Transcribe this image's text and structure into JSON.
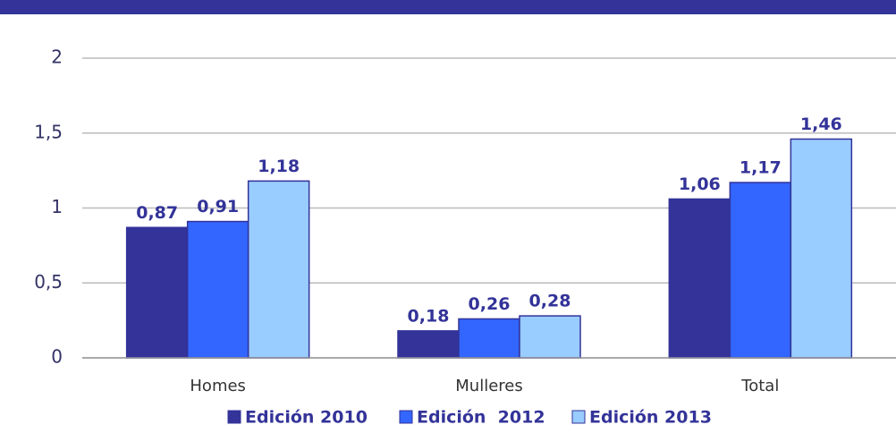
{
  "chart_data": {
    "type": "bar",
    "categories": [
      "Homes",
      "Mulleres",
      "Total"
    ],
    "series": [
      {
        "name": "Edición 2010",
        "color": "#333399",
        "values": [
          0.87,
          0.18,
          1.06
        ],
        "value_labels": [
          "0,87",
          "0,18",
          "1,06"
        ]
      },
      {
        "name": "Edición  2012",
        "color": "#3366ff",
        "values": [
          0.91,
          0.26,
          1.17
        ],
        "value_labels": [
          "0,91",
          "0,26",
          "1,17"
        ]
      },
      {
        "name": "Edición 2013",
        "color": "#99ccff",
        "values": [
          1.18,
          0.28,
          1.46
        ],
        "value_labels": [
          "1,18",
          "0,28",
          "1,46"
        ]
      }
    ],
    "ylim": [
      0,
      2
    ],
    "yticks": [
      0,
      {
        "value": 0.5,
        "label": "0,5"
      },
      1,
      {
        "value": 1.5,
        "label": "1,5"
      },
      2
    ],
    "grid": true,
    "legend": "bottom"
  }
}
